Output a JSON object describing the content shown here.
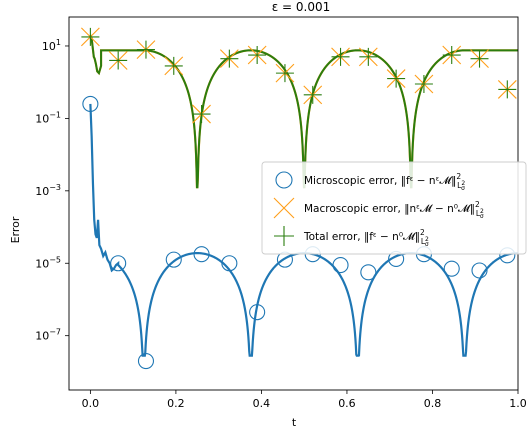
{
  "chart_data": {
    "type": "line",
    "title": "ε = 0.001",
    "xlabel": "t",
    "ylabel": "Error",
    "xlim": [
      -0.05,
      1.0
    ],
    "ylim_log10": [
      -8.5,
      1.8
    ],
    "y_scale": "log",
    "grid": false,
    "legend_position": "center-right",
    "x_ticks": [
      {
        "value": 0.0,
        "label": "0.0"
      },
      {
        "value": 0.2,
        "label": "0.2"
      },
      {
        "value": 0.4,
        "label": "0.4"
      },
      {
        "value": 0.6,
        "label": "0.6"
      },
      {
        "value": 0.8,
        "label": "0.8"
      },
      {
        "value": 1.0,
        "label": "1.0"
      }
    ],
    "y_ticks": [
      {
        "exp": 1,
        "label": "10",
        "sup": "1"
      },
      {
        "exp": -1,
        "label": "10",
        "sup": "−1"
      },
      {
        "exp": -3,
        "label": "10",
        "sup": "−3"
      },
      {
        "exp": -5,
        "label": "10",
        "sup": "−5"
      },
      {
        "exp": -7,
        "label": "10",
        "sup": "−7"
      }
    ],
    "series": [
      {
        "name": "Microscopic error, ‖f^ε − n^ε𝓜‖²_{L²_σ}",
        "legend": {
          "prefix": "Microscopic error, ",
          "formula": "‖fᵋ − nᵋ𝓜‖",
          "sup": "2",
          "sub": "L",
          "subsub": "2",
          "subchar": "σ"
        },
        "color": "#1f77b4",
        "marker": "circle",
        "curve_log10": [
          [
            0.0,
            -0.6
          ],
          [
            0.003,
            -1.5
          ],
          [
            0.006,
            -2.8
          ],
          [
            0.009,
            -3.8
          ],
          [
            0.012,
            -4.2
          ],
          [
            0.015,
            -4.3
          ],
          [
            0.018,
            -3.8
          ],
          [
            0.021,
            -4.5
          ],
          [
            0.025,
            -4.6
          ],
          [
            0.03,
            -4.8
          ],
          [
            0.035,
            -4.7
          ],
          [
            0.04,
            -4.9
          ],
          [
            0.045,
            -5.0
          ],
          [
            0.05,
            -5.2
          ],
          [
            0.055,
            -5.15
          ],
          [
            0.06,
            -5.05
          ],
          [
            0.065,
            -5.0
          ]
        ],
        "curve_periodic": {
          "start": 0.065,
          "end": 1.0,
          "minima": [
            0.125,
            0.375,
            0.625,
            0.875
          ],
          "peak_log10": -4.72,
          "base_log10": -7.55
        },
        "markers_x": [
          0.0,
          0.065,
          0.13,
          0.195,
          0.26,
          0.325,
          0.39,
          0.455,
          0.52,
          0.585,
          0.65,
          0.715,
          0.78,
          0.845,
          0.91,
          0.975
        ],
        "markers_log10": [
          -0.6,
          -5.0,
          -7.7,
          -4.9,
          -4.75,
          -5.0,
          -6.35,
          -4.9,
          -4.75,
          -5.05,
          -5.25,
          -4.88,
          -4.75,
          -5.15,
          -5.2,
          -4.78
        ]
      },
      {
        "name": "Macroscopic error, ‖n^ε𝓜 − n⁰𝓜‖²_{L²_σ}",
        "legend": {
          "prefix": "Macroscopic error, ",
          "formula": "‖nᵋ𝓜 − n⁰𝓜‖",
          "sup": "2",
          "sub": "L",
          "subsub": "2",
          "subchar": "σ"
        },
        "color": "#ff9f1a",
        "marker": "x"
      },
      {
        "name": "Total error, ‖f^ε − n⁰𝓜‖²_{L²_σ}",
        "legend": {
          "prefix": "Total error, ",
          "formula": "‖fᵋ − n⁰𝓜‖",
          "sup": "2",
          "sub": "L",
          "subsub": "2",
          "subchar": "σ"
        },
        "color": "#2a7d0f",
        "marker": "plus",
        "curve_log10": [
          [
            0.0,
            1.3
          ],
          [
            0.003,
            1.2
          ],
          [
            0.006,
            0.9
          ],
          [
            0.008,
            0.7
          ],
          [
            0.01,
            0.65
          ],
          [
            0.013,
            0.5
          ],
          [
            0.016,
            0.3
          ],
          [
            0.02,
            0.25
          ],
          [
            0.025,
            0.45
          ]
        ],
        "curve_periodic": {
          "start": 0.025,
          "end": 1.0,
          "minima": [
            0.25,
            0.5,
            0.75
          ],
          "peak_log10": 0.88,
          "base_log10": -2.9
        },
        "markers_x": [
          0.0,
          0.065,
          0.13,
          0.195,
          0.26,
          0.325,
          0.39,
          0.455,
          0.52,
          0.585,
          0.65,
          0.715,
          0.78,
          0.845,
          0.91,
          0.975
        ],
        "markers_log10": [
          1.25,
          0.6,
          0.9,
          0.45,
          -0.88,
          0.65,
          0.75,
          0.25,
          -0.35,
          0.7,
          0.7,
          0.1,
          -0.05,
          0.75,
          0.65,
          -0.2
        ]
      }
    ]
  }
}
